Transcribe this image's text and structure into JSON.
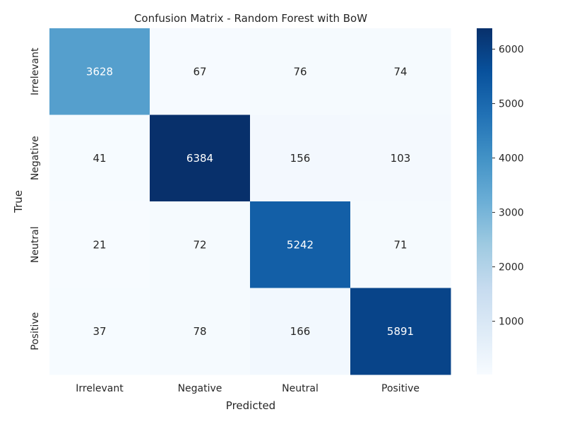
{
  "chart_data": {
    "type": "heatmap",
    "title": "Confusion Matrix - Random Forest with BoW",
    "xlabel": "Predicted",
    "ylabel": "True",
    "x_categories": [
      "Irrelevant",
      "Negative",
      "Neutral",
      "Positive"
    ],
    "y_categories": [
      "Irrelevant",
      "Negative",
      "Neutral",
      "Positive"
    ],
    "values": [
      [
        3628,
        67,
        76,
        74
      ],
      [
        41,
        6384,
        156,
        103
      ],
      [
        21,
        72,
        5242,
        71
      ],
      [
        37,
        78,
        166,
        5891
      ]
    ],
    "colormap": "Blues",
    "colorbar": {
      "ticks": [
        1000,
        2000,
        3000,
        4000,
        5000,
        6000
      ],
      "tick_labels": [
        "1000",
        "2000",
        "3000",
        "4000",
        "5000",
        "6000"
      ]
    },
    "grid": false,
    "legend": "colorbar-right"
  }
}
